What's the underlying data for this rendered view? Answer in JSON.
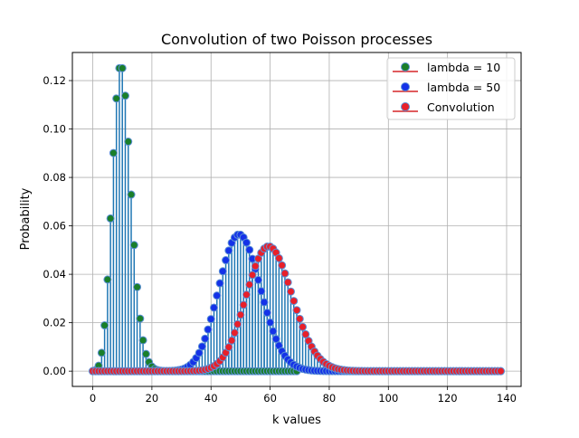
{
  "chart_data": {
    "type": "stem",
    "title": "Convolution of two Poisson processes",
    "xlabel": "k values",
    "ylabel": "Probability",
    "xlim": [
      -6.9,
      144.9
    ],
    "ylim": [
      -0.0063,
      0.1316
    ],
    "xticks": [
      0,
      20,
      40,
      60,
      80,
      100,
      120,
      140
    ],
    "yticks": [
      0.0,
      0.02,
      0.04,
      0.06,
      0.08,
      0.1,
      0.12
    ],
    "ytick_labels": [
      "0.00",
      "0.02",
      "0.04",
      "0.06",
      "0.08",
      "0.10",
      "0.12"
    ],
    "grid": true,
    "legend_position": "top-right",
    "series": [
      {
        "name": "lambda = 10",
        "k_max": 69,
        "marker_color": "#1a7f2a",
        "edge_color": "#5b8fd6",
        "stem_color": "#1f77b4"
      },
      {
        "name": "lambda = 50",
        "k_max": 138,
        "marker_color": "#1432e8",
        "edge_color": "#5b8fd6",
        "stem_color": "#1f77b4"
      },
      {
        "name": "Convolution",
        "k_max": 138,
        "marker_color": "#e8202a",
        "edge_color": "#5b8fd6",
        "stem_color": "#1f77b4"
      }
    ],
    "baseline_color": "#d62728"
  }
}
